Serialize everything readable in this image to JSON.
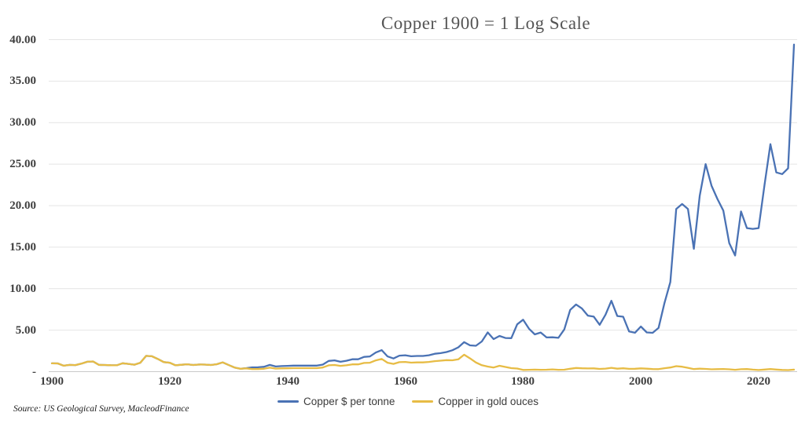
{
  "title": "Copper 1900 = 1 Log Scale",
  "source_note": "Source: US Geological Survey, MacleodFinance",
  "colors": {
    "copper_usd": "#4A72B4",
    "copper_gold": "#E7BC45",
    "grid": "#E4E4E4",
    "axis": "#C9C9C9",
    "tick_text": "#3f3f3f",
    "title_text": "#555555"
  },
  "chart_data": {
    "type": "line",
    "title": "Copper 1900 = 1 Log Scale",
    "x_range": [
      1900,
      2026
    ],
    "x_step": 1,
    "xlabel": "",
    "ylabel": "",
    "ylim": [
      0,
      40
    ],
    "grid": "horizontal",
    "legend_position": "bottom",
    "y_ticks": [
      "40.00",
      "35.00",
      "30.00",
      "25.00",
      "20.00",
      "15.00",
      "10.00",
      "5.00",
      "-"
    ],
    "x_ticks": [
      "1900",
      "1920",
      "1940",
      "1960",
      "1980",
      "2000",
      "2020"
    ],
    "series": [
      {
        "name": "Copper $ per tonne",
        "color": "#4A72B4",
        "values": [
          1.0,
          0.99,
          0.72,
          0.81,
          0.79,
          0.96,
          1.19,
          1.23,
          0.81,
          0.8,
          0.78,
          0.77,
          1.01,
          0.94,
          0.84,
          1.07,
          1.9,
          1.85,
          1.52,
          1.15,
          1.08,
          0.77,
          0.83,
          0.89,
          0.8,
          0.86,
          0.85,
          0.8,
          0.9,
          1.12,
          0.8,
          0.5,
          0.35,
          0.43,
          0.52,
          0.53,
          0.59,
          0.81,
          0.62,
          0.67,
          0.7,
          0.73,
          0.73,
          0.73,
          0.73,
          0.73,
          0.85,
          1.3,
          1.36,
          1.19,
          1.31,
          1.49,
          1.49,
          1.78,
          1.83,
          2.31,
          2.59,
          1.83,
          1.59,
          1.93,
          1.98,
          1.85,
          1.89,
          1.89,
          1.98,
          2.16,
          2.23,
          2.36,
          2.58,
          2.93,
          3.56,
          3.17,
          3.12,
          3.64,
          4.73,
          3.92,
          4.3,
          4.06,
          4.04,
          5.7,
          6.26,
          5.17,
          4.49,
          4.72,
          4.12,
          4.14,
          4.08,
          5.09,
          7.44,
          8.09,
          7.6,
          6.75,
          6.63,
          5.65,
          6.87,
          8.54,
          6.7,
          6.62,
          4.85,
          4.69,
          5.44,
          4.73,
          4.68,
          5.27,
          8.26,
          10.8,
          19.6,
          20.2,
          19.6,
          14.8,
          21.2,
          25.0,
          22.4,
          20.8,
          19.4,
          15.5,
          14.0,
          19.3,
          17.3,
          17.2,
          17.3,
          22.5,
          27.4,
          24.0,
          23.8,
          24.5,
          39.4
        ]
      },
      {
        "name": "Copper in gold ouces",
        "color": "#E7BC45",
        "values": [
          1.0,
          0.99,
          0.72,
          0.81,
          0.79,
          0.96,
          1.19,
          1.23,
          0.81,
          0.8,
          0.78,
          0.77,
          1.01,
          0.94,
          0.84,
          1.07,
          1.9,
          1.85,
          1.52,
          1.15,
          1.08,
          0.77,
          0.83,
          0.89,
          0.8,
          0.86,
          0.85,
          0.8,
          0.9,
          1.12,
          0.8,
          0.5,
          0.35,
          0.4,
          0.31,
          0.31,
          0.35,
          0.48,
          0.37,
          0.4,
          0.41,
          0.43,
          0.43,
          0.43,
          0.43,
          0.43,
          0.5,
          0.77,
          0.8,
          0.7,
          0.77,
          0.88,
          0.88,
          1.05,
          1.08,
          1.36,
          1.53,
          1.08,
          0.94,
          1.14,
          1.17,
          1.09,
          1.12,
          1.12,
          1.17,
          1.27,
          1.32,
          1.39,
          1.37,
          1.48,
          2.04,
          1.6,
          1.11,
          0.78,
          0.61,
          0.5,
          0.71,
          0.57,
          0.43,
          0.38,
          0.21,
          0.23,
          0.25,
          0.23,
          0.24,
          0.27,
          0.23,
          0.24,
          0.35,
          0.44,
          0.41,
          0.39,
          0.4,
          0.33,
          0.37,
          0.46,
          0.36,
          0.41,
          0.34,
          0.35,
          0.4,
          0.36,
          0.31,
          0.3,
          0.42,
          0.5,
          0.66,
          0.6,
          0.46,
          0.31,
          0.36,
          0.33,
          0.28,
          0.3,
          0.32,
          0.28,
          0.23,
          0.29,
          0.31,
          0.25,
          0.2,
          0.26,
          0.31,
          0.26,
          0.21,
          0.19,
          0.25
        ]
      }
    ]
  },
  "legend": {
    "items": [
      {
        "label": "Copper $ per tonne"
      },
      {
        "label": "Copper in gold ouces"
      }
    ]
  }
}
